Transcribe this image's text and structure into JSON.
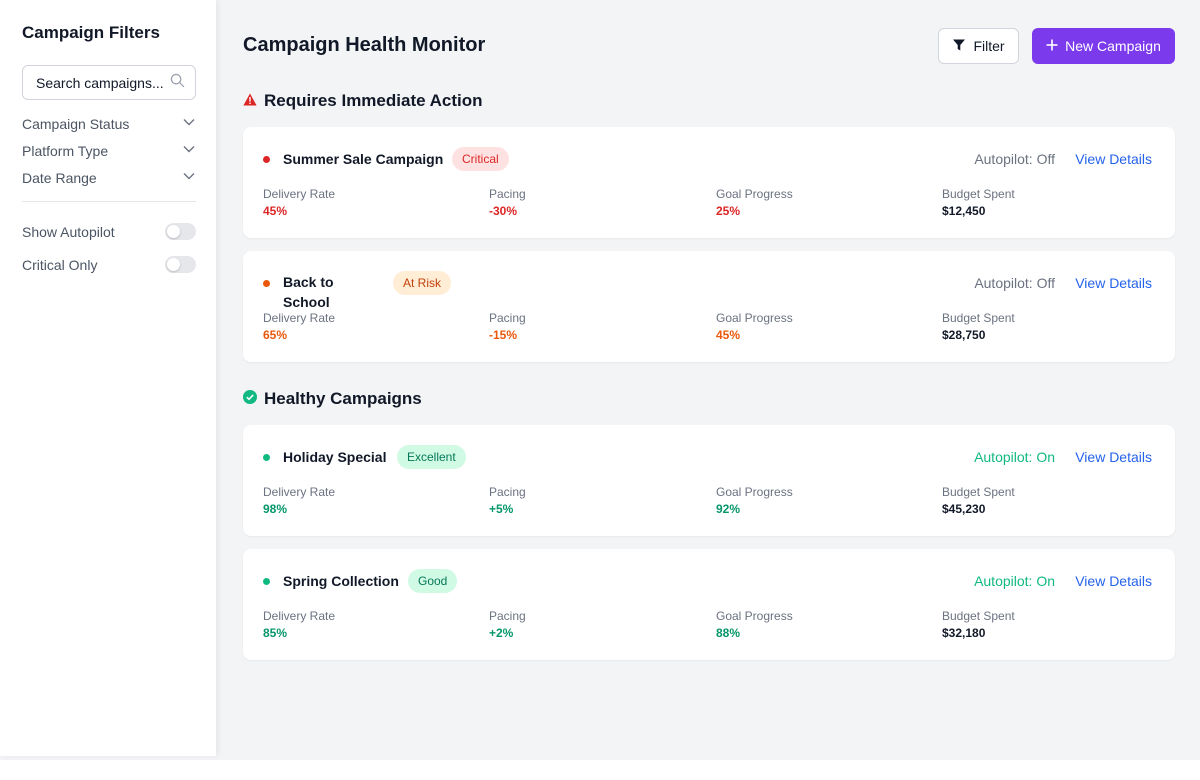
{
  "sidebar": {
    "title": "Campaign Filters",
    "search_placeholder": "Search campaigns...",
    "filters": [
      "Campaign Status",
      "Platform Type",
      "Date Range"
    ],
    "toggles": [
      {
        "label": "Show Autopilot",
        "on": false
      },
      {
        "label": "Critical Only",
        "on": false
      }
    ]
  },
  "header": {
    "title": "Campaign Health Monitor",
    "filter_label": "Filter",
    "new_campaign_label": "New Campaign"
  },
  "sections": {
    "urgent_title": "Requires Immediate Action",
    "healthy_title": "Healthy Campaigns"
  },
  "metric_labels": {
    "delivery": "Delivery Rate",
    "pacing": "Pacing",
    "goal": "Goal Progress",
    "budget": "Budget Spent"
  },
  "campaigns": [
    {
      "name": "Summer Sale Campaign",
      "badge": "Critical",
      "autopilot": "Autopilot: Off",
      "details": "View Details",
      "delivery": "45%",
      "pacing": "-30%",
      "goal": "25%",
      "budget": "$12,450"
    },
    {
      "name_line1": "Back to",
      "name_line2": "School",
      "badge": "At Risk",
      "autopilot": "Autopilot: Off",
      "details": "View Details",
      "delivery": "65%",
      "pacing": "-15%",
      "goal": "45%",
      "budget": "$28,750"
    },
    {
      "name": "Holiday Special",
      "badge": "Excellent",
      "autopilot": "Autopilot: On",
      "details": "View Details",
      "delivery": "98%",
      "pacing": "+5%",
      "goal": "92%",
      "budget": "$45,230"
    },
    {
      "name": "Spring Collection",
      "badge": "Good",
      "autopilot": "Autopilot: On",
      "details": "View Details",
      "delivery": "85%",
      "pacing": "+2%",
      "goal": "88%",
      "budget": "$32,180"
    }
  ],
  "colors": {
    "primary": "#7c3aed",
    "critical": "#dc2626",
    "at_risk": "#ea580c",
    "healthy": "#059669",
    "link": "#2563eb"
  }
}
